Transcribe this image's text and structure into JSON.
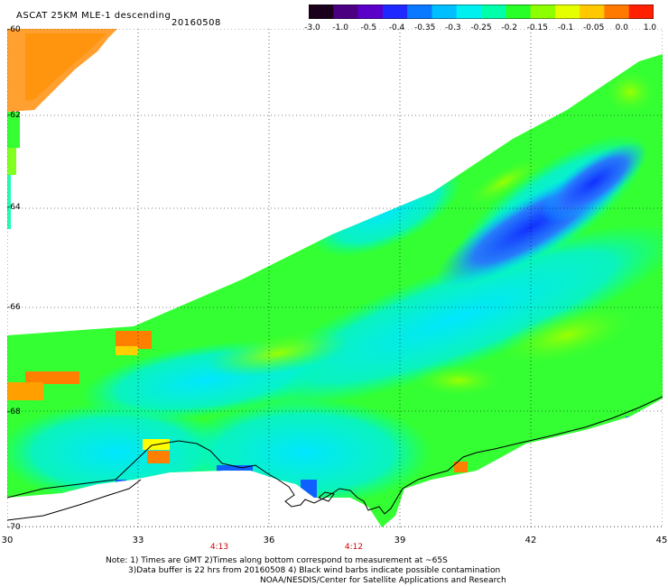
{
  "header": {
    "title": "ASCAT 25KM MLE-1 descending",
    "date": "20160508"
  },
  "colorbar": {
    "labels": [
      "-3.0",
      "-1.0",
      "-0.5",
      "-0.4",
      "-0.35",
      "-0.3",
      "-0.25",
      "-0.2",
      "-0.15",
      "-0.1",
      "-0.05",
      "0.0",
      "1.0"
    ],
    "colors": [
      "#1a001a",
      "#4b0082",
      "#5a00c8",
      "#1e28ff",
      "#0a78ff",
      "#00bfff",
      "#00f0f0",
      "#00ffaa",
      "#28ff28",
      "#8cff00",
      "#e6ff00",
      "#ffc800",
      "#ff7800",
      "#ff2000"
    ]
  },
  "axes": {
    "x_ticks": [
      "30",
      "33",
      "36",
      "39",
      "42",
      "45"
    ],
    "y_ticks": [
      "-60",
      "-62",
      "-64",
      "-66",
      "-68",
      "-70"
    ]
  },
  "times": [
    "4:13",
    "4:12"
  ],
  "notes": {
    "line1": "Note: 1) Times are GMT 2)Times along bottom correspond to measurement at ~65S",
    "line2": "3)Data buffer is 22 hrs from 20160508 4) Black wind barbs indicate possible contamination",
    "line3": "NOAA/NESDIS/Center for Satellite Applications and Research"
  }
}
